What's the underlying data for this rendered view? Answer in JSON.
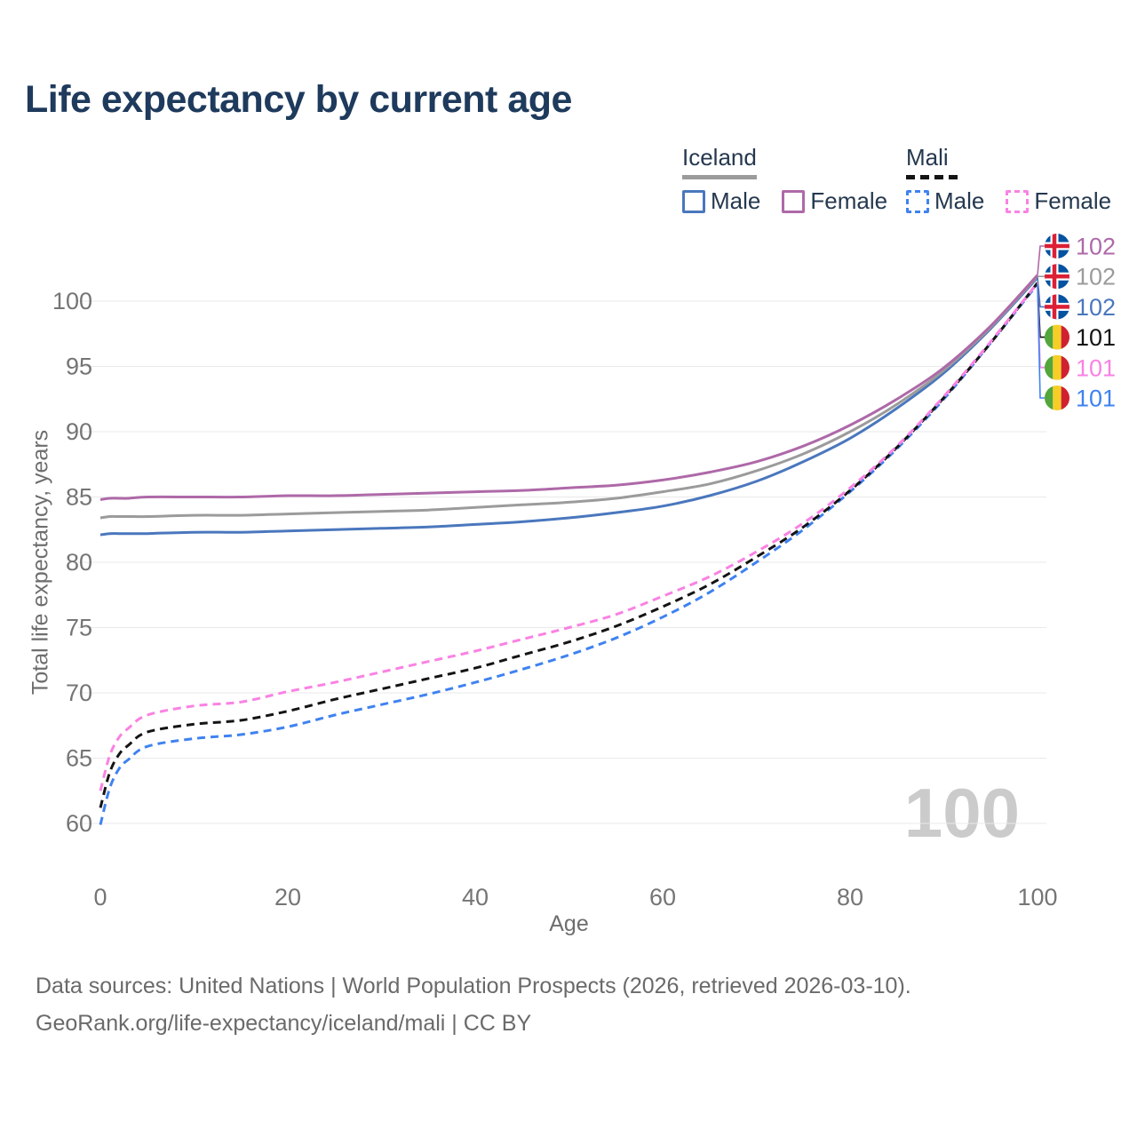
{
  "title": "Life expectancy by current age",
  "legend": {
    "groups": [
      {
        "name": "Iceland",
        "underline_style": "solid",
        "underline_color": "#9b9b9b",
        "items": [
          {
            "label": "Male",
            "color": "#4a77bd",
            "dashed": false
          },
          {
            "label": "Female",
            "color": "#ae69a8",
            "dashed": false
          }
        ]
      },
      {
        "name": "Mali",
        "underline_style": "dashed",
        "underline_color": "#141414",
        "items": [
          {
            "label": "Male",
            "color": "#3f82f0",
            "dashed": true
          },
          {
            "label": "Female",
            "color": "#f982e3",
            "dashed": true
          }
        ]
      }
    ]
  },
  "chart_data": {
    "type": "line",
    "title": "Life expectancy by current age",
    "xlabel": "Age",
    "ylabel": "Total life expectancy, years",
    "xticks": [
      0,
      20,
      40,
      60,
      80,
      100
    ],
    "yticks": [
      60,
      65,
      70,
      75,
      80,
      85,
      90,
      95,
      100
    ],
    "xlim": [
      0,
      100
    ],
    "ylim": [
      59.5,
      102.5
    ],
    "grid": "horizontal",
    "legend_position": "top-right",
    "watermark": "100",
    "x": [
      0,
      1,
      2,
      3,
      5,
      10,
      15,
      20,
      25,
      30,
      35,
      40,
      45,
      50,
      55,
      60,
      65,
      70,
      75,
      80,
      85,
      90,
      95,
      100
    ],
    "series": [
      {
        "id": "iceland_male",
        "country": "Iceland",
        "sex": "Male",
        "color": "#4a77bd",
        "dashed": false,
        "values": [
          82.1,
          82.2,
          82.2,
          82.2,
          82.2,
          82.3,
          82.3,
          82.4,
          82.5,
          82.6,
          82.7,
          82.9,
          83.1,
          83.4,
          83.8,
          84.3,
          85.1,
          86.2,
          87.7,
          89.5,
          91.8,
          94.5,
          97.9,
          101.8
        ]
      },
      {
        "id": "iceland_both",
        "country": "Iceland",
        "sex": "Both",
        "color": "#9b9b9b",
        "dashed": false,
        "values": [
          83.4,
          83.5,
          83.5,
          83.5,
          83.5,
          83.6,
          83.6,
          83.7,
          83.8,
          83.9,
          84.0,
          84.2,
          84.4,
          84.6,
          84.9,
          85.4,
          86.0,
          87.0,
          88.3,
          90.0,
          92.1,
          94.7,
          98.0,
          101.9
        ]
      },
      {
        "id": "iceland_female",
        "country": "Iceland",
        "sex": "Female",
        "color": "#ae69a8",
        "dashed": false,
        "values": [
          84.8,
          84.9,
          84.9,
          84.9,
          85.0,
          85.0,
          85.0,
          85.1,
          85.1,
          85.2,
          85.3,
          85.4,
          85.5,
          85.7,
          85.9,
          86.3,
          86.9,
          87.7,
          88.9,
          90.5,
          92.5,
          94.9,
          98.1,
          102.0
        ]
      },
      {
        "id": "mali_male",
        "country": "Mali",
        "sex": "Male",
        "color": "#3f82f0",
        "dashed": true,
        "values": [
          59.9,
          62.7,
          64.2,
          64.9,
          65.9,
          66.5,
          66.8,
          67.4,
          68.3,
          69.1,
          69.9,
          70.8,
          71.8,
          72.9,
          74.2,
          75.8,
          77.7,
          80.0,
          82.5,
          85.4,
          88.7,
          92.5,
          96.8,
          101.3
        ]
      },
      {
        "id": "mali_both",
        "country": "Mali",
        "sex": "Both",
        "color": "#141414",
        "dashed": true,
        "values": [
          61.2,
          63.9,
          65.3,
          66.0,
          67.0,
          67.6,
          67.9,
          68.6,
          69.5,
          70.3,
          71.1,
          71.9,
          72.9,
          73.9,
          75.1,
          76.6,
          78.3,
          80.4,
          82.7,
          85.5,
          88.8,
          92.6,
          96.8,
          101.4
        ]
      },
      {
        "id": "mali_female",
        "country": "Mali",
        "sex": "Female",
        "color": "#f982e3",
        "dashed": true,
        "values": [
          62.5,
          65.2,
          66.6,
          67.3,
          68.3,
          69.0,
          69.3,
          70.1,
          70.8,
          71.6,
          72.4,
          73.2,
          74.1,
          75.0,
          76.0,
          77.4,
          78.9,
          80.8,
          83.0,
          85.7,
          88.9,
          92.7,
          96.9,
          101.4
        ]
      }
    ],
    "end_labels": [
      {
        "series": "iceland_female",
        "flag": "iceland",
        "value": "102"
      },
      {
        "series": "iceland_both",
        "flag": "iceland",
        "value": "102"
      },
      {
        "series": "iceland_male",
        "flag": "iceland",
        "value": "102"
      },
      {
        "series": "mali_both",
        "flag": "mali",
        "value": "101"
      },
      {
        "series": "mali_female",
        "flag": "mali",
        "value": "101"
      },
      {
        "series": "mali_male",
        "flag": "mali",
        "value": "101"
      }
    ]
  },
  "colors": {
    "title": "#1e3a5c",
    "axis_text": "#757575",
    "axis_title": "#6e6e6e",
    "grid": "#e9e9e9",
    "watermark": "#cbcbcb",
    "footer": "#6a6a6a"
  },
  "flags": {
    "iceland": {
      "blue": "#0452a0",
      "white": "#ffffff",
      "red": "#dc1f35"
    },
    "mali": {
      "green": "#52a63b",
      "yellow": "#f6ce27",
      "red": "#d0212f"
    }
  },
  "footer": {
    "line1": "Data sources: United Nations | World Population Prospects (2026, retrieved 2026-03-10).",
    "line2": "GeoRank.org/life-expectancy/iceland/mali | CC BY"
  }
}
